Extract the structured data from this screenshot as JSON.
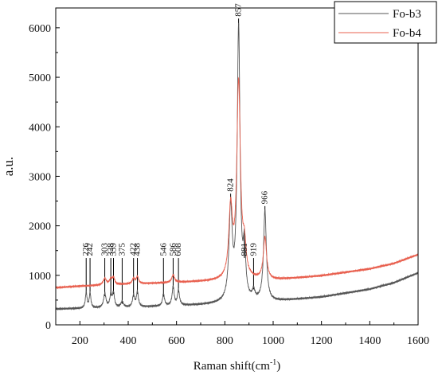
{
  "chart_data": {
    "type": "line",
    "xlabel": "Raman shift(cm",
    "xlabel_sup": "-1",
    "xlabel_close": ")",
    "ylabel": "a.u.",
    "xlim": [
      100,
      1600
    ],
    "ylim": [
      0,
      6400
    ],
    "x_ticks": [
      200,
      400,
      600,
      800,
      1000,
      1200,
      1400,
      1600
    ],
    "y_ticks": [
      0,
      1000,
      2000,
      3000,
      4000,
      5000,
      6000
    ],
    "legend_position": "top-right",
    "series": [
      {
        "name": "Fo-b3",
        "color": "#555555",
        "baseline": [
          [
            100,
            320
          ],
          [
            200,
            330
          ],
          [
            400,
            350
          ],
          [
            700,
            400
          ],
          [
            1000,
            470
          ],
          [
            1200,
            560
          ],
          [
            1400,
            720
          ],
          [
            1500,
            850
          ],
          [
            1600,
            1050
          ]
        ],
        "peaks": [
          [
            226,
            320,
            4
          ],
          [
            242,
            300,
            4
          ],
          [
            303,
            280,
            6
          ],
          [
            328,
            240,
            5
          ],
          [
            339,
            280,
            5
          ],
          [
            375,
            120,
            6
          ],
          [
            422,
            240,
            5
          ],
          [
            438,
            300,
            5
          ],
          [
            546,
            240,
            5
          ],
          [
            586,
            380,
            5
          ],
          [
            608,
            300,
            5
          ],
          [
            824,
            1850,
            8
          ],
          [
            857,
            5500,
            7
          ],
          [
            881,
            980,
            6
          ],
          [
            919,
            180,
            6
          ],
          [
            966,
            1820,
            7
          ]
        ]
      },
      {
        "name": "Fo-b4",
        "color": "#e8604f",
        "baseline": [
          [
            100,
            750
          ],
          [
            200,
            780
          ],
          [
            400,
            820
          ],
          [
            700,
            870
          ],
          [
            1000,
            900
          ],
          [
            1200,
            990
          ],
          [
            1400,
            1130
          ],
          [
            1500,
            1240
          ],
          [
            1600,
            1420
          ]
        ],
        "peaks": [
          [
            303,
            130,
            8
          ],
          [
            328,
            110,
            6
          ],
          [
            339,
            130,
            6
          ],
          [
            422,
            110,
            6
          ],
          [
            438,
            140,
            6
          ],
          [
            586,
            150,
            7
          ],
          [
            824,
            1400,
            9
          ],
          [
            857,
            3950,
            9
          ],
          [
            881,
            550,
            8
          ],
          [
            966,
            850,
            8
          ]
        ]
      }
    ],
    "annotations": [
      {
        "label": "226",
        "x": 226
      },
      {
        "label": "242",
        "x": 242
      },
      {
        "label": "303",
        "x": 303
      },
      {
        "label": "328",
        "x": 328
      },
      {
        "label": "339",
        "x": 339
      },
      {
        "label": "375",
        "x": 375
      },
      {
        "label": "422",
        "x": 422
      },
      {
        "label": "438",
        "x": 438
      },
      {
        "label": "546",
        "x": 546
      },
      {
        "label": "586",
        "x": 586
      },
      {
        "label": "608",
        "x": 608
      },
      {
        "label": "824",
        "x": 824
      },
      {
        "label": "857",
        "x": 857
      },
      {
        "label": "881",
        "x": 881
      },
      {
        "label": "919",
        "x": 919
      },
      {
        "label": "966",
        "x": 966
      }
    ]
  }
}
